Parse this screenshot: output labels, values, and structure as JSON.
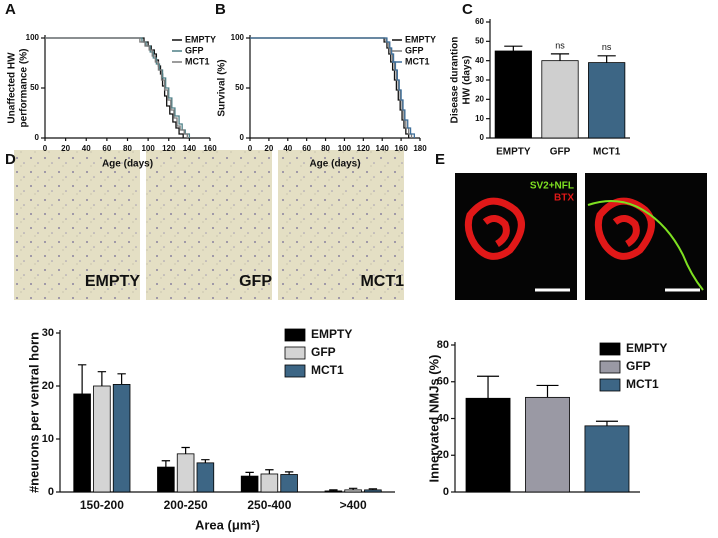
{
  "chart_data": [
    {
      "type": "line",
      "panel_label": "A",
      "ylabel": [
        "Unaffected HW",
        "performance (%)"
      ],
      "xlabel": "Age (days)",
      "xlim": [
        0,
        160
      ],
      "xticks": [
        0,
        20,
        40,
        60,
        80,
        100,
        120,
        140,
        160
      ],
      "ylim": [
        0,
        100
      ],
      "yticks": [
        0,
        50,
        100
      ],
      "legend": "upper right",
      "series": [
        {
          "name": "EMPTY",
          "color": "#111111",
          "x": [
            0,
            90,
            96,
            100,
            103,
            106,
            108,
            110,
            112,
            114,
            116,
            118,
            121,
            124,
            127,
            130,
            134
          ],
          "values": [
            100,
            100,
            96,
            92,
            88,
            84,
            78,
            72,
            64,
            52,
            42,
            32,
            24,
            16,
            10,
            4,
            0
          ]
        },
        {
          "name": "GFP",
          "color": "#4d7f86",
          "x": [
            0,
            88,
            94,
            98,
            102,
            105,
            108,
            111,
            114,
            117,
            120,
            123,
            126,
            130,
            133,
            136,
            140
          ],
          "values": [
            100,
            100,
            96,
            92,
            86,
            80,
            74,
            68,
            60,
            50,
            40,
            30,
            22,
            14,
            8,
            4,
            0
          ]
        },
        {
          "name": "MCT1",
          "color": "#7a7a7a",
          "x": [
            0,
            86,
            92,
            97,
            101,
            104,
            107,
            110,
            113,
            116,
            119,
            122,
            125,
            128,
            131,
            135,
            138
          ],
          "values": [
            100,
            100,
            96,
            92,
            88,
            82,
            76,
            68,
            58,
            48,
            38,
            28,
            20,
            12,
            8,
            4,
            0
          ]
        }
      ]
    },
    {
      "type": "line",
      "panel_label": "B",
      "ylabel": [
        "Survival (%)"
      ],
      "xlabel": "Age (days)",
      "xlim": [
        0,
        180
      ],
      "xticks": [
        0,
        20,
        40,
        60,
        80,
        100,
        120,
        140,
        160,
        180
      ],
      "ylim": [
        0,
        100
      ],
      "yticks": [
        0,
        50,
        100
      ],
      "legend": "upper right",
      "series": [
        {
          "name": "EMPTY",
          "color": "#111111",
          "x": [
            0,
            138,
            142,
            145,
            147,
            149,
            151,
            153,
            155,
            157,
            159,
            161,
            163,
            165,
            168
          ],
          "values": [
            100,
            100,
            96,
            90,
            84,
            76,
            68,
            58,
            48,
            38,
            28,
            18,
            10,
            4,
            0
          ]
        },
        {
          "name": "GFP",
          "color": "#7a7a7a",
          "x": [
            0,
            140,
            144,
            147,
            149,
            151,
            153,
            155,
            157,
            159,
            161,
            163,
            165,
            168,
            171
          ],
          "values": [
            100,
            100,
            96,
            90,
            84,
            76,
            68,
            58,
            48,
            38,
            28,
            18,
            10,
            4,
            0
          ]
        },
        {
          "name": "MCT1",
          "color": "#3f6f9a",
          "x": [
            0,
            141,
            145,
            148,
            150,
            152,
            154,
            156,
            158,
            160,
            162,
            164,
            167,
            170,
            174
          ],
          "values": [
            100,
            100,
            96,
            90,
            84,
            76,
            68,
            58,
            48,
            38,
            28,
            18,
            10,
            4,
            0
          ]
        }
      ]
    },
    {
      "type": "bar",
      "panel_label": "C",
      "ylabel": [
        "Disease durantion",
        "HW (days)"
      ],
      "categories": [
        "EMPTY",
        "GFP",
        "MCT1"
      ],
      "values": [
        45,
        40,
        39
      ],
      "errors": [
        2.5,
        3.5,
        3.5
      ],
      "colors": [
        "#000000",
        "#cfcfcf",
        "#3d6685"
      ],
      "bar_labels": [
        null,
        "ns",
        "ns"
      ],
      "ylim": [
        0,
        60
      ],
      "yticks": [
        0,
        10,
        20,
        30,
        40,
        50,
        60
      ]
    },
    {
      "type": "bar",
      "panel_label": "D",
      "image_labels": [
        "EMPTY",
        "GFP",
        "MCT1"
      ],
      "ylabel": [
        "#neurons per ventral horn"
      ],
      "xlabel": "Area (μm²)",
      "categories": [
        "150-200",
        "200-250",
        "250-400",
        ">400"
      ],
      "ylim": [
        0,
        30
      ],
      "yticks": [
        0,
        10,
        20,
        30
      ],
      "legend": "upper right",
      "series": [
        {
          "name": "EMPTY",
          "color": "#000000",
          "values": [
            18.5,
            4.7,
            3,
            0.2
          ],
          "errors": [
            5.5,
            1.2,
            0.7,
            0.2
          ]
        },
        {
          "name": "GFP",
          "color": "#d4d4d4",
          "values": [
            20,
            7.2,
            3.4,
            0.4
          ],
          "errors": [
            2.7,
            1.2,
            0.8,
            0.3
          ]
        },
        {
          "name": "MCT1",
          "color": "#3d6685",
          "values": [
            20.3,
            5.5,
            3.3,
            0.4
          ],
          "errors": [
            2,
            0.6,
            0.5,
            0.2
          ]
        }
      ]
    },
    {
      "type": "bar",
      "panel_label": "E",
      "image_labels": [
        "SV2+NFL",
        "BTX"
      ],
      "ylabel": [
        "Innervated NMJs (%)"
      ],
      "categories": [
        null
      ],
      "ylim": [
        0,
        80
      ],
      "yticks": [
        0,
        20,
        40,
        60,
        80
      ],
      "legend": "upper right",
      "series": [
        {
          "name": "EMPTY",
          "color": "#000000",
          "values": [
            51
          ],
          "errors": [
            12
          ]
        },
        {
          "name": "GFP",
          "color": "#9a99a4",
          "values": [
            51.5
          ],
          "errors": [
            6.5
          ]
        },
        {
          "name": "MCT1",
          "color": "#3d6685",
          "values": [
            36
          ],
          "errors": [
            2.5
          ]
        }
      ]
    }
  ]
}
